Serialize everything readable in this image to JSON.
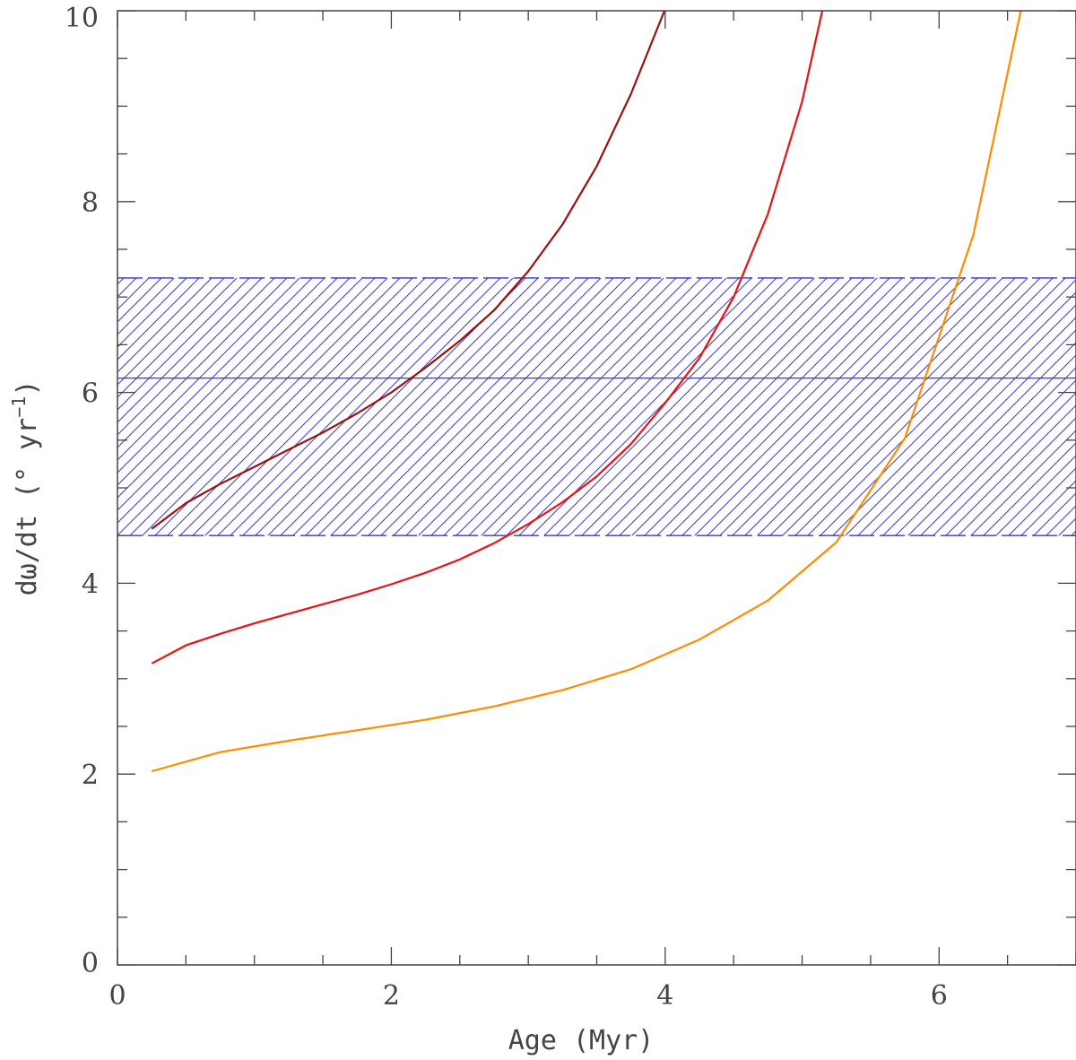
{
  "chart_data": {
    "type": "line",
    "title": "",
    "xlabel": "Age (Myr)",
    "ylabel_parts": {
      "main": "dω/dt (° yr",
      "superscript": "−1",
      "close": ")"
    },
    "xlim": [
      0,
      7
    ],
    "ylim": [
      0,
      10
    ],
    "x_ticks": [
      {
        "value": 0,
        "label": "0"
      },
      {
        "value": 2,
        "label": "2"
      },
      {
        "value": 4,
        "label": "4"
      },
      {
        "value": 6,
        "label": "6"
      }
    ],
    "y_ticks": [
      {
        "value": 0,
        "label": "0"
      },
      {
        "value": 2,
        "label": "2"
      },
      {
        "value": 4,
        "label": "4"
      },
      {
        "value": 6,
        "label": "6"
      },
      {
        "value": 8,
        "label": "8"
      },
      {
        "value": 10,
        "label": "10"
      }
    ],
    "x_minor_step": 0.5,
    "y_minor_step": 0.5,
    "band": {
      "center": 6.15,
      "lower": 4.5,
      "upper": 7.2,
      "color": "#3333ee",
      "style": "hatched"
    },
    "series": [
      {
        "name": "dark-red",
        "color": "#9b1111",
        "x": [
          0.25,
          0.5,
          0.75,
          1.0,
          1.25,
          1.5,
          1.75,
          2.0,
          2.25,
          2.5,
          2.75,
          3.0,
          3.25,
          3.5,
          3.75,
          4.0
        ],
        "y": [
          4.57,
          4.84,
          5.04,
          5.22,
          5.4,
          5.58,
          5.78,
          6.0,
          6.26,
          6.54,
          6.86,
          7.27,
          7.76,
          8.37,
          9.13,
          10.02
        ]
      },
      {
        "name": "red",
        "color": "#ee1111",
        "x": [
          0.25,
          0.5,
          0.75,
          1.0,
          1.25,
          1.5,
          1.75,
          2.0,
          2.25,
          2.5,
          2.75,
          3.0,
          3.25,
          3.5,
          3.75,
          4.0,
          4.25,
          4.5,
          4.75,
          5.0,
          5.15
        ],
        "y": [
          3.16,
          3.35,
          3.47,
          3.58,
          3.68,
          3.78,
          3.88,
          3.99,
          4.11,
          4.25,
          4.42,
          4.62,
          4.85,
          5.12,
          5.46,
          5.89,
          6.36,
          7.0,
          7.87,
          9.05,
          10.02
        ]
      },
      {
        "name": "orange",
        "color": "#ff8c00",
        "x": [
          0.25,
          0.75,
          1.25,
          1.75,
          2.25,
          2.75,
          3.25,
          3.75,
          4.25,
          4.75,
          5.25,
          5.75,
          6.25,
          6.6
        ],
        "y": [
          2.03,
          2.23,
          2.35,
          2.46,
          2.57,
          2.71,
          2.88,
          3.1,
          3.41,
          3.82,
          4.43,
          5.52,
          7.65,
          10.02
        ]
      }
    ]
  }
}
